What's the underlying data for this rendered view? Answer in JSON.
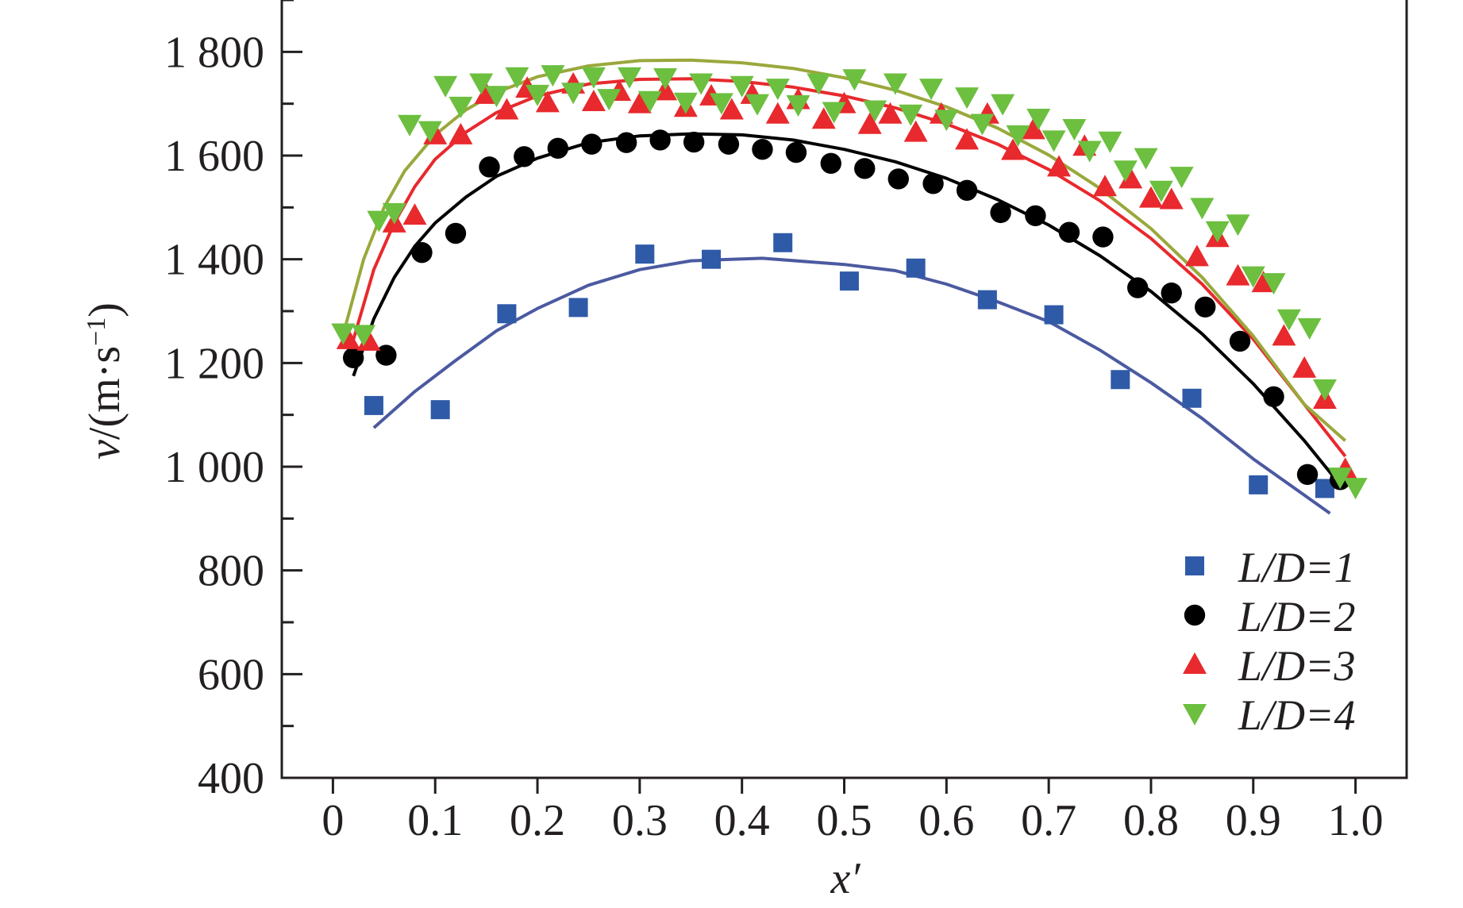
{
  "chart_data": {
    "type": "scatter",
    "xlabel": "x′",
    "ylabel_main": "v",
    "ylabel_unit": "/(m·s",
    "ylabel_exp": "−1",
    "ylabel_close": ")",
    "xlim": [
      -0.05,
      1.05
    ],
    "ylim": [
      400,
      1900
    ],
    "x_ticks": [
      {
        "v": 0.0,
        "label": "0"
      },
      {
        "v": 0.1,
        "label": "0.1"
      },
      {
        "v": 0.2,
        "label": "0.2"
      },
      {
        "v": 0.3,
        "label": "0.3"
      },
      {
        "v": 0.4,
        "label": "0.4"
      },
      {
        "v": 0.5,
        "label": "0.5"
      },
      {
        "v": 0.6,
        "label": "0.6"
      },
      {
        "v": 0.7,
        "label": "0.7"
      },
      {
        "v": 0.8,
        "label": "0.8"
      },
      {
        "v": 0.9,
        "label": "0.9"
      },
      {
        "v": 1.0,
        "label": "1.0"
      }
    ],
    "y_ticks": [
      {
        "v": 400,
        "label": "400"
      },
      {
        "v": 600,
        "label": "600"
      },
      {
        "v": 800,
        "label": "800"
      },
      {
        "v": 1000,
        "label": "1 000"
      },
      {
        "v": 1200,
        "label": "1 200"
      },
      {
        "v": 1400,
        "label": "1 400"
      },
      {
        "v": 1600,
        "label": "1 600"
      },
      {
        "v": 1800,
        "label": "1 800"
      }
    ],
    "y_minor_ticks": [
      500,
      700,
      900,
      1100,
      1300,
      1500,
      1700,
      1900
    ],
    "legend_position": "bottom-right",
    "series": [
      {
        "name": "L/D=1",
        "legend_label": "L/D=1",
        "marker": "square",
        "color": "#2f5aa8",
        "fit_color": "#4b5aa0",
        "points": [
          [
            0.04,
            1118
          ],
          [
            0.105,
            1110
          ],
          [
            0.17,
            1295
          ],
          [
            0.24,
            1307
          ],
          [
            0.305,
            1410
          ],
          [
            0.37,
            1400
          ],
          [
            0.44,
            1432
          ],
          [
            0.505,
            1358
          ],
          [
            0.57,
            1383
          ],
          [
            0.64,
            1322
          ],
          [
            0.705,
            1293
          ],
          [
            0.77,
            1168
          ],
          [
            0.84,
            1132
          ],
          [
            0.905,
            965
          ],
          [
            0.97,
            958
          ]
        ],
        "fit": [
          [
            0.04,
            1075
          ],
          [
            0.08,
            1145
          ],
          [
            0.12,
            1205
          ],
          [
            0.16,
            1262
          ],
          [
            0.2,
            1305
          ],
          [
            0.25,
            1350
          ],
          [
            0.3,
            1380
          ],
          [
            0.35,
            1397
          ],
          [
            0.42,
            1402
          ],
          [
            0.5,
            1390
          ],
          [
            0.55,
            1378
          ],
          [
            0.6,
            1352
          ],
          [
            0.65,
            1318
          ],
          [
            0.7,
            1280
          ],
          [
            0.75,
            1225
          ],
          [
            0.8,
            1162
          ],
          [
            0.85,
            1093
          ],
          [
            0.9,
            1015
          ],
          [
            0.95,
            945
          ],
          [
            0.975,
            910
          ]
        ]
      },
      {
        "name": "L/D=2",
        "legend_label": "L/D=2",
        "marker": "circle",
        "color": "#000000",
        "fit_color": "#000000",
        "points": [
          [
            0.02,
            1210
          ],
          [
            0.052,
            1215
          ],
          [
            0.087,
            1413
          ],
          [
            0.12,
            1450
          ],
          [
            0.153,
            1578
          ],
          [
            0.187,
            1598
          ],
          [
            0.22,
            1614
          ],
          [
            0.253,
            1622
          ],
          [
            0.287,
            1625
          ],
          [
            0.32,
            1630
          ],
          [
            0.353,
            1626
          ],
          [
            0.387,
            1622
          ],
          [
            0.42,
            1612
          ],
          [
            0.453,
            1606
          ],
          [
            0.487,
            1585
          ],
          [
            0.52,
            1575
          ],
          [
            0.553,
            1555
          ],
          [
            0.587,
            1546
          ],
          [
            0.62,
            1533
          ],
          [
            0.653,
            1490
          ],
          [
            0.687,
            1484
          ],
          [
            0.72,
            1452
          ],
          [
            0.753,
            1443
          ],
          [
            0.787,
            1345
          ],
          [
            0.82,
            1335
          ],
          [
            0.853,
            1308
          ],
          [
            0.887,
            1242
          ],
          [
            0.92,
            1135
          ],
          [
            0.953,
            985
          ],
          [
            0.985,
            975
          ]
        ],
        "fit": [
          [
            0.02,
            1175
          ],
          [
            0.04,
            1285
          ],
          [
            0.06,
            1365
          ],
          [
            0.08,
            1425
          ],
          [
            0.1,
            1470
          ],
          [
            0.13,
            1520
          ],
          [
            0.16,
            1560
          ],
          [
            0.2,
            1595
          ],
          [
            0.25,
            1625
          ],
          [
            0.3,
            1638
          ],
          [
            0.35,
            1642
          ],
          [
            0.4,
            1640
          ],
          [
            0.45,
            1630
          ],
          [
            0.5,
            1612
          ],
          [
            0.55,
            1588
          ],
          [
            0.6,
            1556
          ],
          [
            0.65,
            1515
          ],
          [
            0.7,
            1466
          ],
          [
            0.75,
            1407
          ],
          [
            0.8,
            1338
          ],
          [
            0.85,
            1256
          ],
          [
            0.9,
            1160
          ],
          [
            0.95,
            1050
          ],
          [
            0.985,
            965
          ]
        ]
      },
      {
        "name": "L/D=3",
        "legend_label": "L/D=3",
        "marker": "triangle-up",
        "color": "#e8292d",
        "fit_color": "#e8292d",
        "points": [
          [
            0.015,
            1245
          ],
          [
            0.035,
            1242
          ],
          [
            0.06,
            1470
          ],
          [
            0.08,
            1485
          ],
          [
            0.1,
            1640
          ],
          [
            0.125,
            1640
          ],
          [
            0.15,
            1718
          ],
          [
            0.17,
            1688
          ],
          [
            0.19,
            1730
          ],
          [
            0.21,
            1702
          ],
          [
            0.235,
            1738
          ],
          [
            0.255,
            1704
          ],
          [
            0.28,
            1724
          ],
          [
            0.3,
            1700
          ],
          [
            0.325,
            1725
          ],
          [
            0.345,
            1693
          ],
          [
            0.37,
            1715
          ],
          [
            0.39,
            1688
          ],
          [
            0.41,
            1718
          ],
          [
            0.435,
            1680
          ],
          [
            0.455,
            1708
          ],
          [
            0.48,
            1670
          ],
          [
            0.5,
            1700
          ],
          [
            0.525,
            1660
          ],
          [
            0.545,
            1680
          ],
          [
            0.57,
            1645
          ],
          [
            0.595,
            1680
          ],
          [
            0.62,
            1630
          ],
          [
            0.64,
            1680
          ],
          [
            0.665,
            1610
          ],
          [
            0.685,
            1650
          ],
          [
            0.71,
            1578
          ],
          [
            0.735,
            1618
          ],
          [
            0.755,
            1540
          ],
          [
            0.78,
            1555
          ],
          [
            0.8,
            1518
          ],
          [
            0.82,
            1515
          ],
          [
            0.845,
            1405
          ],
          [
            0.865,
            1442
          ],
          [
            0.885,
            1368
          ],
          [
            0.91,
            1355
          ],
          [
            0.93,
            1252
          ],
          [
            0.95,
            1190
          ],
          [
            0.97,
            1130
          ],
          [
            0.99,
            995
          ]
        ],
        "fit": [
          [
            0.02,
            1245
          ],
          [
            0.04,
            1380
          ],
          [
            0.06,
            1470
          ],
          [
            0.08,
            1540
          ],
          [
            0.1,
            1593
          ],
          [
            0.13,
            1645
          ],
          [
            0.16,
            1683
          ],
          [
            0.2,
            1715
          ],
          [
            0.25,
            1738
          ],
          [
            0.3,
            1747
          ],
          [
            0.35,
            1748
          ],
          [
            0.4,
            1743
          ],
          [
            0.45,
            1732
          ],
          [
            0.5,
            1715
          ],
          [
            0.55,
            1692
          ],
          [
            0.6,
            1661
          ],
          [
            0.65,
            1622
          ],
          [
            0.7,
            1573
          ],
          [
            0.75,
            1513
          ],
          [
            0.8,
            1440
          ],
          [
            0.85,
            1352
          ],
          [
            0.9,
            1246
          ],
          [
            0.95,
            1120
          ],
          [
            0.99,
            1020
          ]
        ]
      },
      {
        "name": "L/D=4",
        "legend_label": "L/D=4",
        "marker": "triangle-down",
        "color": "#6cbf3f",
        "fit_color": "#9aa83c",
        "points": [
          [
            0.01,
            1258
          ],
          [
            0.03,
            1255
          ],
          [
            0.045,
            1475
          ],
          [
            0.06,
            1490
          ],
          [
            0.075,
            1660
          ],
          [
            0.095,
            1648
          ],
          [
            0.11,
            1735
          ],
          [
            0.125,
            1695
          ],
          [
            0.145,
            1740
          ],
          [
            0.16,
            1716
          ],
          [
            0.18,
            1752
          ],
          [
            0.2,
            1718
          ],
          [
            0.215,
            1756
          ],
          [
            0.235,
            1722
          ],
          [
            0.255,
            1752
          ],
          [
            0.27,
            1710
          ],
          [
            0.29,
            1752
          ],
          [
            0.31,
            1706
          ],
          [
            0.325,
            1750
          ],
          [
            0.345,
            1703
          ],
          [
            0.36,
            1740
          ],
          [
            0.38,
            1702
          ],
          [
            0.4,
            1735
          ],
          [
            0.415,
            1700
          ],
          [
            0.435,
            1730
          ],
          [
            0.455,
            1698
          ],
          [
            0.475,
            1740
          ],
          [
            0.49,
            1685
          ],
          [
            0.51,
            1748
          ],
          [
            0.53,
            1688
          ],
          [
            0.55,
            1740
          ],
          [
            0.565,
            1680
          ],
          [
            0.585,
            1730
          ],
          [
            0.6,
            1670
          ],
          [
            0.62,
            1713
          ],
          [
            0.635,
            1662
          ],
          [
            0.655,
            1700
          ],
          [
            0.67,
            1640
          ],
          [
            0.69,
            1672
          ],
          [
            0.705,
            1630
          ],
          [
            0.725,
            1652
          ],
          [
            0.74,
            1610
          ],
          [
            0.76,
            1628
          ],
          [
            0.775,
            1572
          ],
          [
            0.795,
            1596
          ],
          [
            0.81,
            1533
          ],
          [
            0.83,
            1560
          ],
          [
            0.85,
            1500
          ],
          [
            0.865,
            1455
          ],
          [
            0.885,
            1468
          ],
          [
            0.9,
            1368
          ],
          [
            0.92,
            1355
          ],
          [
            0.935,
            1285
          ],
          [
            0.955,
            1268
          ],
          [
            0.97,
            1150
          ],
          [
            0.985,
            980
          ],
          [
            1.0,
            960
          ]
        ],
        "fit": [
          [
            0.01,
            1255
          ],
          [
            0.03,
            1400
          ],
          [
            0.05,
            1500
          ],
          [
            0.07,
            1570
          ],
          [
            0.1,
            1640
          ],
          [
            0.13,
            1688
          ],
          [
            0.16,
            1722
          ],
          [
            0.2,
            1752
          ],
          [
            0.25,
            1773
          ],
          [
            0.3,
            1783
          ],
          [
            0.35,
            1784
          ],
          [
            0.4,
            1779
          ],
          [
            0.45,
            1768
          ],
          [
            0.5,
            1750
          ],
          [
            0.55,
            1726
          ],
          [
            0.6,
            1694
          ],
          [
            0.65,
            1653
          ],
          [
            0.7,
            1601
          ],
          [
            0.75,
            1537
          ],
          [
            0.8,
            1459
          ],
          [
            0.85,
            1365
          ],
          [
            0.9,
            1252
          ],
          [
            0.95,
            1120
          ],
          [
            0.99,
            1050
          ]
        ]
      }
    ]
  }
}
